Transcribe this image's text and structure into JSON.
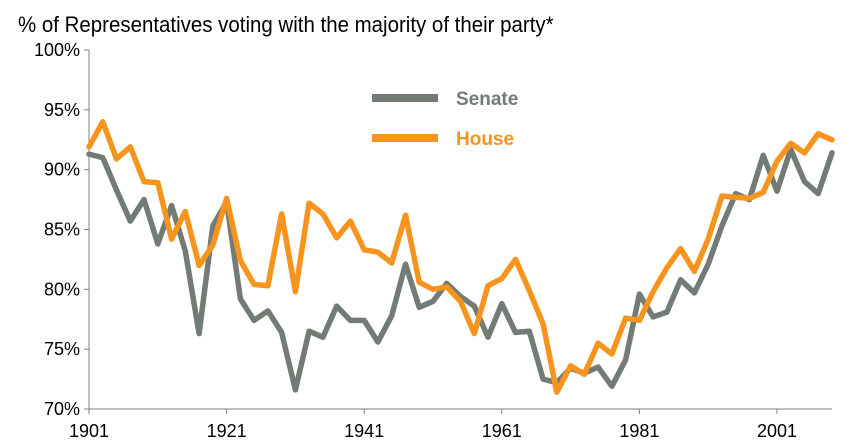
{
  "chart_data": {
    "type": "line",
    "title": "% of Representatives voting with the majority of their party*",
    "xlabel": "",
    "ylabel": "",
    "xlim": [
      1901,
      2009
    ],
    "ylim": [
      70,
      100
    ],
    "x_ticks": [
      1901,
      1921,
      1941,
      1961,
      1981,
      2001
    ],
    "y_ticks": [
      70,
      75,
      80,
      85,
      90,
      95,
      100
    ],
    "x_tick_labels": [
      "1901",
      "1921",
      "1941",
      "1961",
      "1981",
      "2001"
    ],
    "y_tick_labels": [
      "70%",
      "75%",
      "80%",
      "85%",
      "90%",
      "95%",
      "100%"
    ],
    "grid": false,
    "legend_position": "top-center",
    "x": [
      1901,
      1903,
      1905,
      1907,
      1909,
      1911,
      1913,
      1915,
      1917,
      1919,
      1921,
      1923,
      1925,
      1927,
      1929,
      1931,
      1933,
      1935,
      1937,
      1939,
      1941,
      1943,
      1945,
      1947,
      1949,
      1951,
      1953,
      1955,
      1957,
      1959,
      1961,
      1963,
      1965,
      1967,
      1969,
      1971,
      1973,
      1975,
      1977,
      1979,
      1981,
      1983,
      1985,
      1987,
      1989,
      1991,
      1993,
      1995,
      1997,
      1999,
      2001,
      2003,
      2005,
      2007,
      2009
    ],
    "series": [
      {
        "name": "Senate",
        "color": "#737b75",
        "values": [
          91.3,
          91.0,
          88.3,
          85.7,
          87.5,
          83.8,
          87.0,
          83.2,
          76.3,
          85.3,
          87.3,
          79.2,
          77.4,
          78.2,
          76.4,
          71.6,
          76.5,
          76.0,
          78.6,
          77.4,
          77.4,
          75.6,
          77.8,
          82.1,
          78.5,
          79.0,
          80.5,
          79.4,
          78.6,
          76.0,
          78.8,
          76.4,
          76.5,
          72.5,
          72.2,
          73.4,
          73.0,
          73.5,
          71.9,
          74.1,
          79.6,
          77.7,
          78.1,
          80.8,
          79.7,
          82.1,
          85.3,
          88.0,
          87.5,
          91.2,
          88.2,
          91.7,
          89.0,
          88.0,
          91.4
        ]
      },
      {
        "name": "House",
        "color": "#f7941d",
        "values": [
          91.9,
          94.0,
          90.9,
          91.9,
          89.0,
          88.9,
          84.2,
          86.5,
          82.0,
          83.7,
          87.6,
          82.4,
          80.4,
          80.3,
          86.3,
          79.8,
          87.2,
          86.3,
          84.3,
          85.7,
          83.3,
          83.1,
          82.2,
          86.2,
          80.6,
          80.0,
          80.2,
          79.0,
          76.3,
          80.3,
          80.9,
          82.5,
          79.9,
          77.1,
          71.4,
          73.6,
          72.9,
          75.5,
          74.6,
          77.6,
          77.4,
          79.8,
          81.8,
          83.4,
          81.5,
          84.2,
          87.8,
          87.7,
          87.6,
          88.1,
          90.7,
          92.2,
          91.4,
          93.0,
          92.5
        ]
      }
    ]
  }
}
